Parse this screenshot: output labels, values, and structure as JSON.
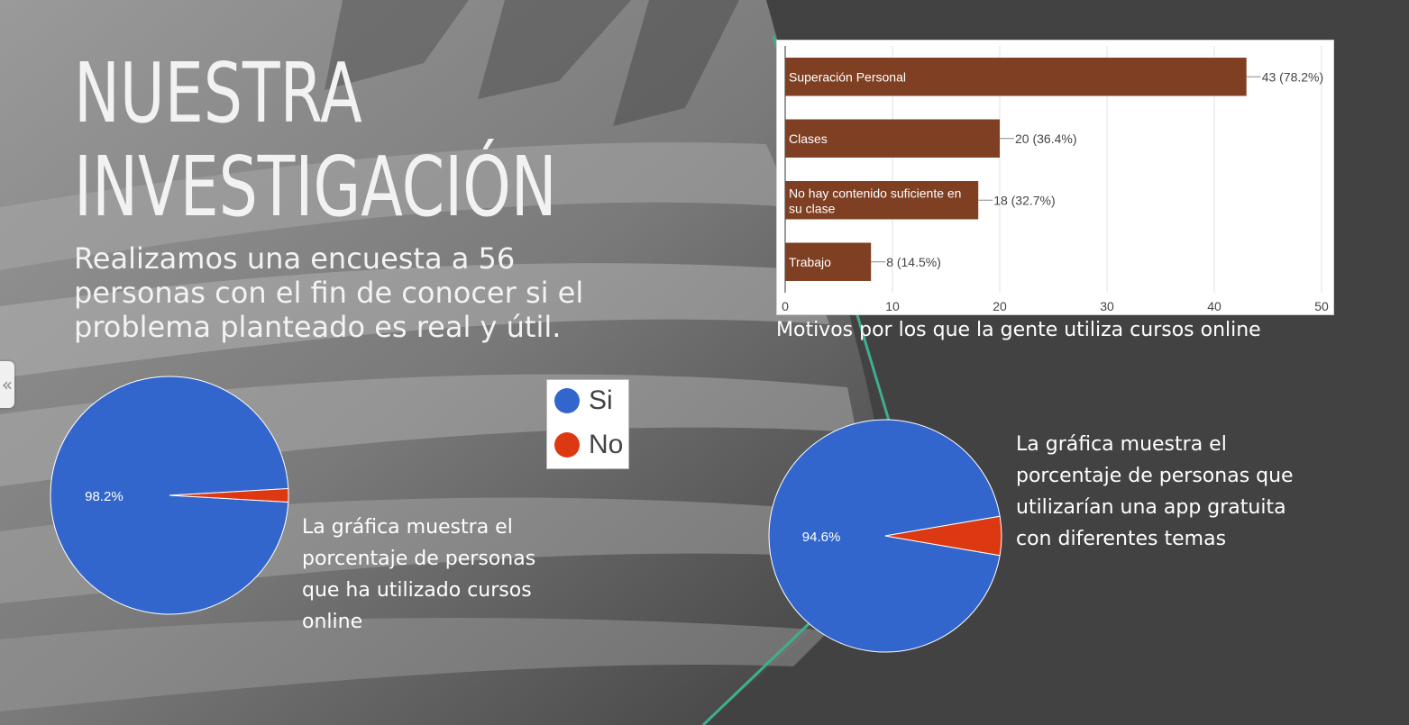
{
  "slide": {
    "title_line1": "NUESTRA",
    "title_line2": "INVESTIGACIÓN",
    "subtitle": "Realizamos una encuesta a 56 personas con el fin de conocer si el problema planteado es real y útil.",
    "caption_pie1": "La gráfica muestra el porcentaje de personas que ha utilizado cursos online",
    "caption_pie2": "La gráfica muestra el porcentaje de personas que utilizarían una app gratuita con diferentes temas",
    "bar_caption": "Motivos por los que la gente utiliza cursos online",
    "collapse_icon": "chevron-double-left-icon",
    "collapse_glyph": "«"
  },
  "legend": [
    {
      "label": "Si",
      "color": "#3366cc"
    },
    {
      "label": "No",
      "color": "#dc3912"
    }
  ],
  "chart_data": [
    {
      "type": "bar",
      "orientation": "horizontal",
      "categories": [
        "Superación Personal",
        "Clases",
        "No hay contenido suficiente en su clase",
        "Trabajo"
      ],
      "values": [
        43,
        20,
        18,
        8
      ],
      "data_labels": [
        "43 (78.2%)",
        "20 (36.4%)",
        "18 (32.7%)",
        "8 (14.5%)"
      ],
      "xlim": [
        0,
        50
      ],
      "x_ticks": [
        0,
        10,
        20,
        30,
        40,
        50
      ],
      "grid": true,
      "bar_color": "#7f3f22"
    },
    {
      "type": "pie",
      "labels": [
        "Si",
        "No"
      ],
      "values": [
        98.2,
        1.8
      ],
      "data_labels": [
        "98.2%",
        ""
      ],
      "colors": [
        "#3366cc",
        "#dc3912"
      ]
    },
    {
      "type": "pie",
      "labels": [
        "Si",
        "No"
      ],
      "values": [
        94.6,
        5.4
      ],
      "data_labels": [
        "94.6%",
        ""
      ],
      "colors": [
        "#3366cc",
        "#dc3912"
      ]
    }
  ]
}
